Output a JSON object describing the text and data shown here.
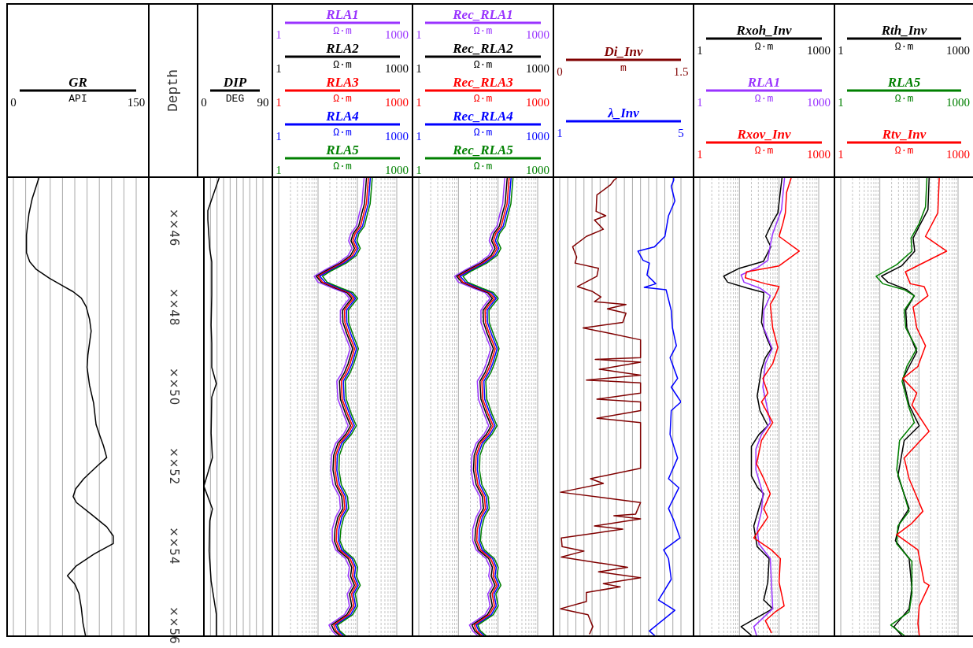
{
  "chart_data": [
    {
      "type": "line",
      "orientation": "horizontal",
      "xlabel": "API",
      "xlim": [
        0,
        150
      ],
      "xticks": [
        0,
        {
          "value": 15,
          "label": null
        },
        {
          "value": 30,
          "label": null
        },
        {
          "value": 45,
          "label": null
        },
        {
          "value": 60,
          "label": null
        },
        {
          "value": 75,
          "label": null
        },
        {
          "value": 90,
          "label": null
        },
        {
          "value": 105,
          "label": null
        },
        {
          "value": 120,
          "label": null
        },
        {
          "value": 135,
          "label": null
        },
        150
      ],
      "ylim": [
        56.25,
        44.75
      ],
      "tick_labels": "x",
      "grid": "x",
      "legend": "top",
      "x": [
        44.76,
        45.27,
        45.65,
        46.18,
        46.63,
        46.86,
        47.05,
        47.27,
        47.46,
        47.61,
        47.77,
        47.99,
        48.3,
        48.6,
        49.2,
        49.51,
        49.96,
        50.41,
        50.95,
        51.25,
        51.48,
        51.78,
        52.0,
        52.31,
        52.57,
        52.76,
        52.91,
        53.22,
        53.52,
        53.75,
        53.94,
        54.2,
        54.5,
        54.75,
        54.96,
        55.19,
        55.56,
        55.94,
        56.25
      ],
      "series": [
        {
          "name": "GR",
          "color": "#000000",
          "values": [
            31,
            23,
            19,
            16,
            16,
            20,
            28,
            44,
            60,
            73,
            83,
            89,
            93,
            95,
            91,
            90,
            93,
            98,
            101,
            106,
            110,
            114,
            102,
            86,
            76,
            73,
            77,
            96,
            114,
            122,
            122,
            99,
            77,
            66,
            75,
            80,
            83,
            85,
            88
          ]
        }
      ]
    },
    {
      "type": "line",
      "orientation": "horizontal",
      "xlabel": "DEG",
      "ylabel": "Depth",
      "xlim": [
        0,
        90
      ],
      "xticks": [
        0,
        {
          "value": 10,
          "label": null
        },
        {
          "value": 20,
          "label": null
        },
        {
          "value": 30,
          "label": null
        },
        {
          "value": 40,
          "label": null
        },
        {
          "value": 50,
          "label": null
        },
        {
          "value": 60,
          "label": null
        },
        {
          "value": 70,
          "label": null
        },
        {
          "value": 80,
          "label": null
        },
        90
      ],
      "ylim": [
        56.25,
        44.75
      ],
      "yticks": [
        {
          "value": 46,
          "label": "××46"
        },
        {
          "value": 48,
          "label": "××48"
        },
        {
          "value": 50,
          "label": "××50"
        },
        {
          "value": 52,
          "label": "××52"
        },
        {
          "value": 54,
          "label": "××54"
        },
        {
          "value": 56,
          "label": "××56"
        }
      ],
      "grid": "x",
      "legend": "top",
      "x": [
        44.76,
        45.57,
        45.8,
        46.55,
        46.86,
        47.69,
        48.45,
        48.9,
        49.51,
        49.92,
        50.26,
        51.17,
        51.78,
        52.5,
        53.07,
        53.37,
        54.13,
        54.88,
        55.72,
        56.25
      ],
      "series": [
        {
          "name": "DIP",
          "color": "#000000",
          "values": [
            23,
            6,
            6,
            9,
            12,
            12,
            11,
            12,
            12,
            19,
            12,
            11,
            13,
            0,
            13,
            9,
            8,
            11,
            19,
            19
          ]
        }
      ]
    },
    {
      "type": "line",
      "orientation": "horizontal",
      "log": "x",
      "xlabel": "Ω·m",
      "xlim": [
        1,
        1000
      ],
      "xticks": [
        1,
        {
          "value": 2,
          "label": null
        },
        {
          "value": 3,
          "label": null
        },
        {
          "value": 4,
          "label": null
        },
        {
          "value": 5,
          "label": null
        },
        {
          "value": 6,
          "label": null
        },
        {
          "value": 7,
          "label": null
        },
        {
          "value": 8,
          "label": null
        },
        {
          "value": 9,
          "label": null
        },
        {
          "value": 10,
          "label": null
        },
        {
          "value": 20,
          "label": null
        },
        {
          "value": 30,
          "label": null
        },
        {
          "value": 40,
          "label": null
        },
        {
          "value": 50,
          "label": null
        },
        {
          "value": 60,
          "label": null
        },
        {
          "value": 70,
          "label": null
        },
        {
          "value": 80,
          "label": null
        },
        {
          "value": 90,
          "label": null
        },
        {
          "value": 100,
          "label": null
        },
        {
          "value": 200,
          "label": null
        },
        {
          "value": 300,
          "label": null
        },
        {
          "value": 400,
          "label": null
        },
        {
          "value": 500,
          "label": null
        },
        {
          "value": 600,
          "label": null
        },
        {
          "value": 700,
          "label": null
        },
        {
          "value": 800,
          "label": null
        },
        {
          "value": 900,
          "label": null
        },
        1000
      ],
      "annotations": [
        "1",
        "1000",
        "1",
        "1000",
        "1",
        "1000",
        "1",
        "1000"
      ],
      "ylim": [
        56.25,
        44.75
      ],
      "tick_labels": "x",
      "grid": "x",
      "legend": "top",
      "x": [
        44.76,
        44.85,
        45.4,
        45.63,
        45.96,
        46.15,
        46.33,
        46.52,
        46.7,
        46.89,
        47.08,
        47.22,
        47.37,
        47.52,
        47.63,
        47.78,
        47.93,
        48.08,
        48.38,
        48.67,
        49.04,
        49.42,
        49.64,
        49.86,
        50.31,
        50.68,
        50.98,
        51.2,
        51.42,
        51.72,
        52.09,
        52.46,
        52.76,
        53.06,
        53.28,
        53.58,
        53.87,
        54.1,
        54.32,
        54.54,
        54.76,
        54.99,
        55.21,
        55.51,
        55.73,
        55.99,
        56.14,
        56.25
      ],
      "series": [
        {
          "name": "RLA1",
          "color": "#9933ff",
          "values": [
            148,
            145,
            131,
            113,
            94,
            68,
            60,
            73,
            58,
            32,
            14,
            8,
            10,
            24,
            47,
            63,
            47,
            37,
            37,
            47,
            66,
            50,
            41,
            30,
            32,
            44,
            58,
            44,
            28,
            22,
            21,
            24,
            35,
            37,
            28,
            23,
            23,
            28,
            50,
            63,
            58,
            73,
            55,
            63,
            47,
            19,
            23,
            30
          ]
        },
        {
          "name": "RLA2",
          "color": "#000000",
          "values": [
            170,
            167,
            151,
            130,
            108,
            78,
            69,
            84,
            67,
            37,
            16,
            9,
            12,
            28,
            54,
            72,
            54,
            42,
            43,
            54,
            76,
            58,
            47,
            35,
            37,
            50,
            67,
            50,
            32,
            25,
            24,
            28,
            40,
            43,
            32,
            27,
            26,
            32,
            58,
            72,
            67,
            84,
            63,
            72,
            54,
            22,
            26,
            35
          ]
        },
        {
          "name": "RLA3",
          "color": "#ff0000",
          "values": [
            190,
            187,
            169,
            146,
            121,
            87,
            77,
            94,
            75,
            41,
            18,
            10,
            13,
            31,
            60,
            81,
            60,
            47,
            48,
            60,
            85,
            65,
            53,
            39,
            41,
            56,
            75,
            56,
            36,
            28,
            27,
            31,
            45,
            48,
            36,
            30,
            29,
            36,
            65,
            81,
            75,
            94,
            71,
            81,
            60,
            25,
            29,
            39
          ]
        },
        {
          "name": "RLA4",
          "color": "#0000ff",
          "values": [
            213,
            209,
            189,
            163,
            135,
            98,
            86,
            105,
            84,
            46,
            20,
            11,
            15,
            35,
            68,
            90,
            68,
            53,
            54,
            68,
            95,
            73,
            59,
            44,
            46,
            63,
            84,
            63,
            40,
            31,
            30,
            35,
            50,
            54,
            40,
            34,
            33,
            40,
            73,
            90,
            84,
            105,
            79,
            90,
            68,
            28,
            33,
            44
          ]
        },
        {
          "name": "RLA5",
          "color": "#008000",
          "values": [
            238,
            234,
            211,
            182,
            151,
            109,
            97,
            118,
            94,
            52,
            22,
            13,
            17,
            39,
            76,
            101,
            76,
            59,
            60,
            76,
            106,
            81,
            66,
            49,
            52,
            70,
            94,
            70,
            45,
            35,
            34,
            39,
            56,
            60,
            45,
            38,
            36,
            45,
            81,
            101,
            94,
            118,
            88,
            101,
            76,
            31,
            36,
            49
          ]
        }
      ]
    },
    {
      "type": "line",
      "orientation": "horizontal",
      "log": "x",
      "xlabel": "Ω·m",
      "xlim": [
        1,
        1000
      ],
      "xticks": [
        1,
        {
          "value": 2,
          "label": null
        },
        {
          "value": 3,
          "label": null
        },
        {
          "value": 4,
          "label": null
        },
        {
          "value": 5,
          "label": null
        },
        {
          "value": 6,
          "label": null
        },
        {
          "value": 7,
          "label": null
        },
        {
          "value": 8,
          "label": null
        },
        {
          "value": 9,
          "label": null
        },
        {
          "value": 10,
          "label": null
        },
        {
          "value": 20,
          "label": null
        },
        {
          "value": 30,
          "label": null
        },
        {
          "value": 40,
          "label": null
        },
        {
          "value": 50,
          "label": null
        },
        {
          "value": 60,
          "label": null
        },
        {
          "value": 70,
          "label": null
        },
        {
          "value": 80,
          "label": null
        },
        {
          "value": 90,
          "label": null
        },
        {
          "value": 100,
          "label": null
        },
        {
          "value": 200,
          "label": null
        },
        {
          "value": 300,
          "label": null
        },
        {
          "value": 400,
          "label": null
        },
        {
          "value": 500,
          "label": null
        },
        {
          "value": 600,
          "label": null
        },
        {
          "value": 700,
          "label": null
        },
        {
          "value": 800,
          "label": null
        },
        {
          "value": 900,
          "label": null
        },
        1000
      ],
      "annotations": [
        "1",
        "1000",
        "1",
        "1000",
        "1",
        "1000",
        "1",
        "1000"
      ],
      "ylim": [
        56.25,
        44.75
      ],
      "tick_labels": "x",
      "grid": "x",
      "legend": "top",
      "x": [
        44.76,
        44.85,
        45.4,
        45.63,
        45.96,
        46.15,
        46.33,
        46.52,
        46.7,
        46.89,
        47.08,
        47.22,
        47.37,
        47.52,
        47.63,
        47.78,
        47.93,
        48.08,
        48.38,
        48.67,
        49.04,
        49.42,
        49.64,
        49.86,
        50.31,
        50.68,
        50.98,
        51.2,
        51.42,
        51.72,
        52.09,
        52.46,
        52.76,
        53.06,
        53.28,
        53.58,
        53.87,
        54.1,
        54.32,
        54.54,
        54.76,
        54.99,
        55.21,
        55.51,
        55.73,
        55.99,
        56.14,
        56.25
      ],
      "series": [
        {
          "name": "Rec_RLA1",
          "color": "#9933ff",
          "values": [
            148,
            145,
            131,
            113,
            94,
            68,
            60,
            73,
            58,
            32,
            14,
            8,
            10,
            24,
            47,
            63,
            47,
            37,
            37,
            47,
            66,
            50,
            41,
            30,
            32,
            44,
            58,
            44,
            28,
            22,
            21,
            24,
            35,
            37,
            28,
            23,
            23,
            28,
            50,
            63,
            58,
            73,
            55,
            63,
            47,
            19,
            23,
            30
          ]
        },
        {
          "name": "Rec_RLA2",
          "color": "#000000",
          "values": [
            170,
            167,
            151,
            130,
            108,
            78,
            69,
            84,
            67,
            37,
            16,
            9,
            12,
            28,
            54,
            72,
            54,
            42,
            43,
            54,
            76,
            58,
            47,
            35,
            37,
            50,
            67,
            50,
            32,
            25,
            24,
            28,
            40,
            43,
            32,
            27,
            26,
            32,
            58,
            72,
            67,
            84,
            63,
            72,
            54,
            22,
            26,
            35
          ]
        },
        {
          "name": "Rec_RLA3",
          "color": "#ff0000",
          "values": [
            190,
            187,
            169,
            146,
            121,
            87,
            77,
            94,
            75,
            41,
            18,
            10,
            13,
            31,
            60,
            81,
            60,
            47,
            48,
            60,
            85,
            65,
            53,
            39,
            41,
            56,
            75,
            56,
            36,
            28,
            27,
            31,
            45,
            48,
            36,
            30,
            29,
            36,
            65,
            81,
            75,
            94,
            71,
            81,
            60,
            25,
            29,
            39
          ]
        },
        {
          "name": "Rec_RLA4",
          "color": "#0000ff",
          "values": [
            213,
            209,
            189,
            163,
            135,
            98,
            86,
            105,
            84,
            46,
            20,
            11,
            15,
            35,
            68,
            90,
            68,
            53,
            54,
            68,
            95,
            73,
            59,
            44,
            46,
            63,
            84,
            63,
            40,
            31,
            30,
            35,
            50,
            54,
            40,
            34,
            33,
            40,
            73,
            90,
            84,
            105,
            79,
            90,
            68,
            28,
            33,
            44
          ]
        },
        {
          "name": "Rec_RLA5",
          "color": "#008000",
          "values": [
            238,
            234,
            211,
            182,
            151,
            109,
            97,
            118,
            94,
            52,
            22,
            13,
            17,
            39,
            76,
            101,
            76,
            59,
            60,
            76,
            106,
            81,
            66,
            49,
            52,
            70,
            94,
            70,
            45,
            35,
            34,
            39,
            56,
            60,
            45,
            38,
            36,
            45,
            81,
            101,
            94,
            118,
            88,
            101,
            76,
            31,
            36,
            49
          ]
        }
      ]
    },
    {
      "type": "line",
      "orientation": "horizontal",
      "xlabel": "m",
      "xlim": [
        0,
        1.5
      ],
      "xticks": [
        0,
        {
          "value": 0.1,
          "label": null
        },
        {
          "value": 0.2,
          "label": null
        },
        {
          "value": 0.3,
          "label": null
        },
        {
          "value": 0.4,
          "label": null
        },
        {
          "value": 0.5,
          "label": null
        },
        {
          "value": 0.6,
          "label": null
        },
        {
          "value": 0.7,
          "label": null
        },
        {
          "value": 0.8,
          "label": null
        },
        {
          "value": 0.9,
          "label": null
        },
        {
          "value": 1.0,
          "label": null
        },
        {
          "value": 1.1,
          "label": null
        },
        {
          "value": 1.2,
          "label": null
        },
        {
          "value": 1.3,
          "label": null
        },
        {
          "value": 1.4,
          "label": null
        },
        1.5
      ],
      "x2lim": [
        1,
        5
      ],
      "x2ticks": [
        1,
        5
      ],
      "ylim": [
        56.25,
        44.75
      ],
      "tick_labels": "x",
      "grid": "x",
      "legend": "top",
      "series": [
        {
          "name": "Di_Inv",
          "color": "#800000",
          "x": [
            44.76,
            44.81,
            44.92,
            45.18,
            45.59,
            45.7,
            45.81,
            46.04,
            46.22,
            46.48,
            46.74,
            46.89,
            47.02,
            47.22,
            47.48,
            47.6,
            47.74,
            47.86,
            47.93,
            48.04,
            48.15,
            48.38,
            48.52,
            48.67,
            48.82,
            49.27,
            49.31,
            49.38,
            49.56,
            49.71,
            49.83,
            49.9,
            50.16,
            50.31,
            50.38,
            50.6,
            50.79,
            50.9,
            52.05,
            52.31,
            52.43,
            52.65,
            52.91,
            53.2,
            53.24,
            53.32,
            53.5,
            53.58,
            53.8,
            54.02,
            54.13,
            54.28,
            54.54,
            54.65,
            54.8,
            54.95,
            55.03,
            55.17,
            55.4,
            55.58,
            55.73,
            56.03,
            56.21
          ],
          "values": [
            0.7,
            0.67,
            0.63,
            0.46,
            0.45,
            0.57,
            0.43,
            0.54,
            0.33,
            0.16,
            0.21,
            0.19,
            0.48,
            0.46,
            0.22,
            0.4,
            0.51,
            0.43,
            0.82,
            0.59,
            0.82,
            0.78,
            0.29,
            0.65,
            1.0,
            1.0,
            0.44,
            1.0,
            0.49,
            1.0,
            0.33,
            1.0,
            1.0,
            0.46,
            1.0,
            1.0,
            0.46,
            1.0,
            1.0,
            0.38,
            0.54,
            0.01,
            1.0,
            0.94,
            0.67,
            1.0,
            0.43,
            0.78,
            0.02,
            0.03,
            0.3,
            0.02,
            0.84,
            0.48,
            1.0,
            0.54,
            0.75,
            0.33,
            0.33,
            0.01,
            0.35,
            0.41,
            0.37
          ]
        },
        {
          "name": "λ_Inv",
          "color": "#0000ff",
          "axis": "x2",
          "x": [
            44.76,
            44.81,
            44.96,
            45.33,
            45.7,
            46.22,
            46.48,
            46.59,
            46.82,
            46.89,
            47.19,
            47.41,
            47.5,
            47.56,
            48.08,
            48.52,
            48.97,
            49.27,
            49.79,
            50.01,
            50.38,
            50.6,
            51.2,
            51.79,
            52.31,
            52.54,
            53.06,
            53.35,
            53.8,
            54.1,
            54.32,
            54.84,
            55.36,
            55.62,
            56.14,
            56.25
          ],
          "values": [
            4.76,
            4.76,
            4.68,
            4.8,
            4.59,
            4.47,
            4.13,
            3.58,
            3.75,
            3.96,
            3.88,
            4.17,
            3.79,
            4.51,
            4.68,
            4.72,
            4.85,
            4.64,
            4.89,
            4.68,
            5.0,
            4.68,
            4.64,
            4.89,
            4.59,
            4.93,
            4.59,
            4.76,
            4.97,
            4.43,
            4.59,
            4.68,
            4.26,
            4.8,
            3.96,
            4.13
          ]
        }
      ]
    },
    {
      "type": "line",
      "orientation": "horizontal",
      "log": "x",
      "xlabel": "Ω·m",
      "xlim": [
        1,
        1000
      ],
      "xticks": [
        1,
        {
          "value": 2,
          "label": null
        },
        {
          "value": 3,
          "label": null
        },
        {
          "value": 4,
          "label": null
        },
        {
          "value": 5,
          "label": null
        },
        {
          "value": 6,
          "label": null
        },
        {
          "value": 7,
          "label": null
        },
        {
          "value": 8,
          "label": null
        },
        {
          "value": 9,
          "label": null
        },
        {
          "value": 10,
          "label": null
        },
        {
          "value": 20,
          "label": null
        },
        {
          "value": 30,
          "label": null
        },
        {
          "value": 40,
          "label": null
        },
        {
          "value": 50,
          "label": null
        },
        {
          "value": 60,
          "label": null
        },
        {
          "value": 70,
          "label": null
        },
        {
          "value": 80,
          "label": null
        },
        {
          "value": 90,
          "label": null
        },
        {
          "value": 100,
          "label": null
        },
        {
          "value": 200,
          "label": null
        },
        {
          "value": 300,
          "label": null
        },
        {
          "value": 400,
          "label": null
        },
        {
          "value": 500,
          "label": null
        },
        {
          "value": 600,
          "label": null
        },
        {
          "value": 700,
          "label": null
        },
        {
          "value": 800,
          "label": null
        },
        {
          "value": 900,
          "label": null
        },
        1000
      ],
      "annotations": [
        "1",
        "1000",
        "1",
        "1000"
      ],
      "ylim": [
        56.25,
        44.75
      ],
      "tick_labels": "x",
      "grid": "x",
      "legend": "top",
      "series": [
        {
          "name": "Rxoh_Inv",
          "color": "#000000",
          "x": [
            44.76,
            45.63,
            45.85,
            46.22,
            46.48,
            46.85,
            47.02,
            47.22,
            47.37,
            47.52,
            47.63,
            47.93,
            48.38,
            48.75,
            49.04,
            49.27,
            49.56,
            50.23,
            50.6,
            50.98,
            51.2,
            51.5,
            52.24,
            52.54,
            52.69,
            53.06,
            53.5,
            54.02,
            54.32,
            54.91,
            55.36,
            55.58,
            56.03,
            56.25
          ],
          "values": [
            118,
            93,
            69,
            46,
            62,
            40,
            10,
            4,
            5,
            16,
            41,
            39,
            36,
            48,
            64,
            45,
            36,
            28,
            33,
            52,
            31,
            20,
            20,
            29,
            41,
            31,
            23,
            28,
            56,
            52,
            41,
            69,
            11,
            20
          ]
        },
        {
          "name": "RLA1",
          "color": "#9933ff",
          "x": [
            44.76,
            45.55,
            46.15,
            46.44,
            46.82,
            47.0,
            47.19,
            47.37,
            47.52,
            47.71,
            48.08,
            48.52,
            49.04,
            49.42,
            50.01,
            50.9,
            51.2,
            51.57,
            52.09,
            52.69,
            53.13,
            53.58,
            53.95,
            54.32,
            54.91,
            55.58,
            56.03,
            56.25
          ],
          "values": [
            137,
            115,
            69,
            60,
            52,
            29,
            11,
            13,
            33,
            60,
            41,
            41,
            67,
            45,
            39,
            60,
            36,
            26,
            26,
            39,
            36,
            28,
            31,
            60,
            64,
            69,
            23,
            27
          ]
        },
        {
          "name": "Rxov_Inv",
          "color": "#ff0000",
          "x": [
            44.76,
            45.11,
            45.63,
            45.89,
            46.22,
            46.59,
            46.96,
            47.11,
            47.26,
            47.41,
            47.48,
            47.71,
            47.93,
            48.52,
            49.01,
            49.42,
            49.79,
            50.16,
            50.38,
            50.9,
            51.35,
            51.94,
            52.31,
            52.69,
            53.06,
            53.28,
            53.8,
            54.1,
            54.32,
            54.91,
            55.51,
            55.66,
            55.88,
            56.18
          ],
          "values": [
            200,
            155,
            144,
            125,
            100,
            323,
            100,
            15,
            14,
            45,
            100,
            80,
            60,
            69,
            93,
            69,
            39,
            52,
            36,
            69,
            36,
            27,
            41,
            60,
            41,
            52,
            23,
            64,
            108,
            100,
            134,
            80,
            45,
            64
          ]
        }
      ]
    },
    {
      "type": "line",
      "orientation": "horizontal",
      "log": "x",
      "xlabel": "Ω·m",
      "xlim": [
        1,
        1000
      ],
      "xticks": [
        1,
        {
          "value": 2,
          "label": null
        },
        {
          "value": 3,
          "label": null
        },
        {
          "value": 4,
          "label": null
        },
        {
          "value": 5,
          "label": null
        },
        {
          "value": 6,
          "label": null
        },
        {
          "value": 7,
          "label": null
        },
        {
          "value": 8,
          "label": null
        },
        {
          "value": 9,
          "label": null
        },
        {
          "value": 10,
          "label": null
        },
        {
          "value": 20,
          "label": null
        },
        {
          "value": 30,
          "label": null
        },
        {
          "value": 40,
          "label": null
        },
        {
          "value": 50,
          "label": null
        },
        {
          "value": 60,
          "label": null
        },
        {
          "value": 70,
          "label": null
        },
        {
          "value": 80,
          "label": null
        },
        {
          "value": 90,
          "label": null
        },
        {
          "value": 100,
          "label": null
        },
        {
          "value": 200,
          "label": null
        },
        {
          "value": 300,
          "label": null
        },
        {
          "value": 400,
          "label": null
        },
        {
          "value": 500,
          "label": null
        },
        {
          "value": 600,
          "label": null
        },
        {
          "value": 700,
          "label": null
        },
        {
          "value": 800,
          "label": null
        },
        {
          "value": 900,
          "label": null
        },
        1000
      ],
      "annotations": [
        "1",
        "1000",
        "1",
        "1000"
      ],
      "ylim": [
        56.25,
        44.75
      ],
      "tick_labels": "x",
      "grid": "x",
      "legend": "top",
      "series": [
        {
          "name": "Rth_Inv",
          "color": "#000000",
          "x": [
            44.76,
            45.55,
            45.96,
            46.26,
            46.59,
            46.96,
            47.22,
            47.37,
            47.56,
            47.71,
            48.08,
            48.52,
            49.12,
            49.49,
            49.79,
            50.46,
            50.98,
            51.35,
            52.24,
            53.06,
            53.43,
            53.87,
            54.32,
            55.06,
            55.58,
            56.03,
            56.25
          ],
          "values": [
            182,
            170,
            102,
            71,
            78,
            36,
            11,
            16,
            49,
            76,
            46,
            49,
            88,
            56,
            39,
            56,
            102,
            42,
            29,
            56,
            32,
            25,
            56,
            66,
            56,
            23,
            36
          ]
        },
        {
          "name": "RLA5",
          "color": "#008000",
          "x": [
            44.76,
            45.48,
            45.89,
            46.26,
            46.59,
            46.93,
            47.22,
            47.41,
            47.56,
            47.71,
            48.08,
            48.52,
            49.04,
            49.49,
            49.86,
            50.53,
            50.9,
            51.35,
            52.09,
            53.13,
            53.5,
            53.95,
            54.39,
            55.21,
            55.66,
            55.99,
            56.25
          ],
          "values": [
            160,
            147,
            102,
            63,
            66,
            27,
            8,
            12,
            42,
            76,
            42,
            46,
            88,
            49,
            37,
            56,
            76,
            32,
            27,
            56,
            29,
            27,
            66,
            66,
            56,
            19,
            42
          ]
        },
        {
          "name": "Rtv_Inv",
          "color": "#ff0000",
          "x": [
            44.76,
            45.63,
            46.22,
            46.59,
            47.11,
            47.41,
            47.48,
            47.71,
            48.0,
            48.52,
            48.97,
            49.49,
            49.79,
            50.16,
            50.46,
            51.12,
            51.79,
            52.31,
            53.13,
            53.43,
            53.72,
            54.1,
            54.91,
            54.99,
            55.51,
            55.95,
            56.25
          ],
          "values": [
            330,
            304,
            147,
            510,
            45,
            60,
            136,
            170,
            71,
            88,
            147,
            94,
            39,
            88,
            66,
            182,
            42,
            56,
            126,
            66,
            27,
            94,
            136,
            182,
            102,
            94,
            102
          ]
        }
      ]
    }
  ]
}
